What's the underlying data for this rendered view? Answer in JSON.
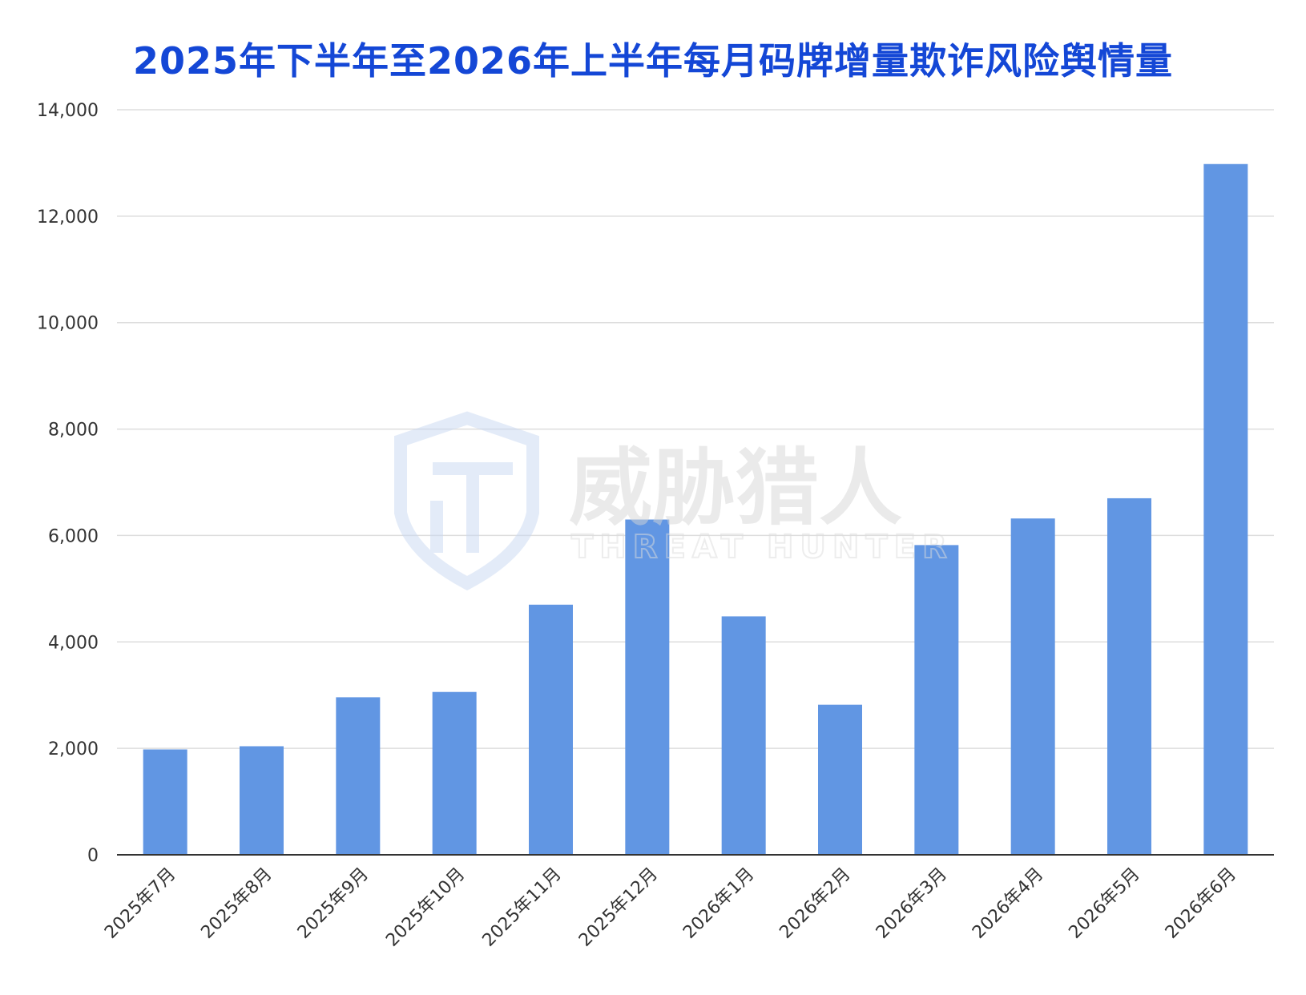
{
  "chart_data": {
    "type": "bar",
    "title": "2025年下半年至2026年上半年每月码牌增量欺诈风险舆情量",
    "xlabel": "",
    "ylabel": "",
    "ylim": [
      0,
      14000
    ],
    "yticks": [
      "0",
      "2,000",
      "4,000",
      "6,000",
      "8,000",
      "10,000",
      "12,000",
      "14,000"
    ],
    "ytick_values": [
      0,
      2000,
      4000,
      6000,
      8000,
      10000,
      12000,
      14000
    ],
    "grid": true,
    "categories": [
      "2025年7月",
      "2025年8月",
      "2025年9月",
      "2025年10月",
      "2025年11月",
      "2025年12月",
      "2026年1月",
      "2026年2月",
      "2026年3月",
      "2026年4月",
      "2026年5月",
      "2026年6月"
    ],
    "values": [
      1980,
      2040,
      2960,
      3060,
      4700,
      6300,
      4480,
      2820,
      5820,
      6320,
      6700,
      12980
    ],
    "colors": {
      "bar": "#6196e3",
      "title": "#1447d6",
      "grid": "#dddddd",
      "axis": "#333333"
    }
  },
  "watermark": {
    "logo": "threat-hunter-shield-logo",
    "text_cn": "威胁猎人",
    "text_en": "THREAT HUNTER"
  }
}
